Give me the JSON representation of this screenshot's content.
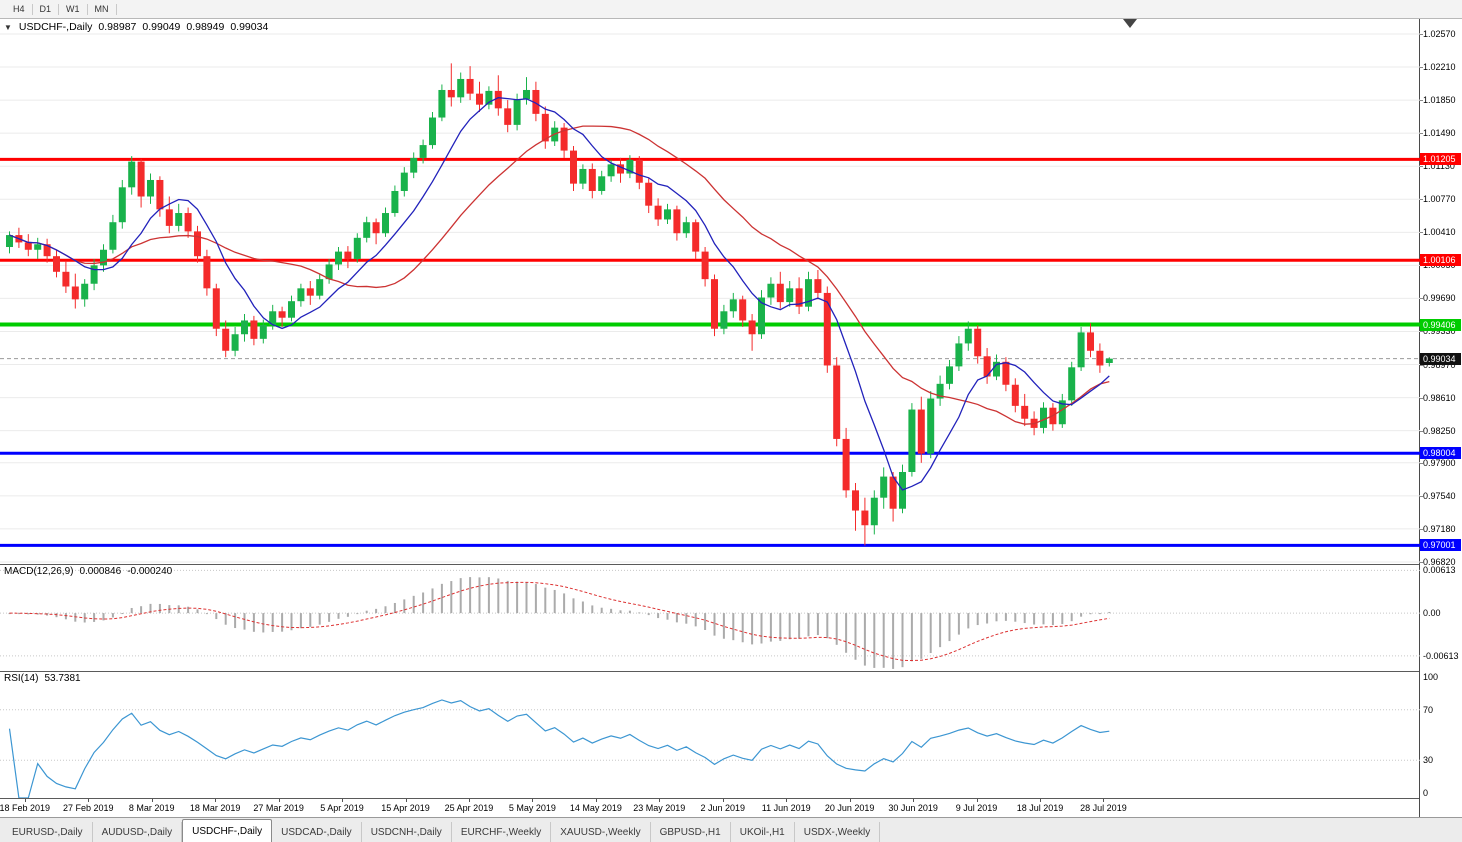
{
  "toolbar": {
    "timeframes": [
      "H4",
      "D1",
      "W1",
      "MN"
    ]
  },
  "chart": {
    "title": {
      "symbol": "USDCHF-,Daily",
      "open": "0.98987",
      "high": "0.99049",
      "low": "0.98949",
      "close": "0.99034"
    }
  },
  "macd": {
    "name": "MACD(12,26,9)",
    "main": "0.000846",
    "signal": "-0.000240"
  },
  "rsi": {
    "name": "RSI(14)",
    "value": "53.7381"
  },
  "tabs": {
    "active_index": 2,
    "items": [
      "EURUSD-,Daily",
      "AUDUSD-,Daily",
      "USDCHF-,Daily",
      "USDCAD-,Daily",
      "USDCNH-,Daily",
      "EURCHF-,Weekly",
      "XAUUSD-,Weekly",
      "GBPUSD-,H1",
      "UKOil-,H1",
      "USDX-,Weekly"
    ]
  },
  "colors": {
    "background": "#ffffff",
    "grid": "#ebebeb",
    "bull": "#19b24b",
    "bear": "#f42b2b",
    "ma_fast": "#2222bb",
    "ma_slow": "#cc3333",
    "current_price_line": "#9a9a9a",
    "current_price_badge": "#111111",
    "macd_bar": "#ababab",
    "macd_signal": "#dd3333",
    "rsi_line": "#3c96d2",
    "indicator_grid": "#c8c8c8",
    "shift_marker": "#444444"
  },
  "chart_data": {
    "type": "candlestick",
    "symbol": "USDCHF",
    "timeframe": "Daily",
    "ylim": [
      0.96798,
      1.02733
    ],
    "price_grid": [
      "1.02570",
      "1.02210",
      "1.01850",
      "1.01490",
      "1.01130",
      "1.00770",
      "1.00410",
      "1.00050",
      "0.99690",
      "0.99330",
      "0.98970",
      "0.98610",
      "0.98250",
      "0.97900",
      "0.97540",
      "0.97180",
      "0.96820"
    ],
    "x_labels": [
      "18 Feb 2019",
      "27 Feb 2019",
      "8 Mar 2019",
      "18 Mar 2019",
      "27 Mar 2019",
      "5 Apr 2019",
      "15 Apr 2019",
      "25 Apr 2019",
      "5 May 2019",
      "14 May 2019",
      "23 May 2019",
      "2 Jun 2019",
      "11 Jun 2019",
      "20 Jun 2019",
      "30 Jun 2019",
      "9 Jul 2019",
      "18 Jul 2019",
      "28 Jul 2019"
    ],
    "levels": [
      {
        "price": 1.01205,
        "label": "1.01205",
        "color": "#ff0000",
        "width": 3
      },
      {
        "price": 1.00106,
        "label": "1.00106",
        "color": "#ff0000",
        "width": 3
      },
      {
        "price": 0.99406,
        "label": "0.99406",
        "color": "#00cc00",
        "width": 4
      },
      {
        "price": 0.98004,
        "label": "0.98004",
        "color": "#0000ff",
        "width": 3
      },
      {
        "price": 0.97001,
        "label": "0.97001",
        "color": "#0000ff",
        "width": 3
      }
    ],
    "current_price": 0.99034,
    "current_price_label": "0.99034",
    "ma": {
      "fast_period": 8,
      "slow_period": 21
    },
    "macd": {
      "params": "(12,26,9)",
      "ylim": [
        -0.0083,
        0.0069
      ],
      "grid": [
        {
          "v": 0.00613,
          "t": "0.00613"
        },
        {
          "v": 0,
          "t": "0.00"
        },
        {
          "v": -0.00613,
          "t": "-0.00613"
        }
      ]
    },
    "rsi": {
      "period": 14,
      "grid": [
        {
          "v": 100,
          "t": "100"
        },
        {
          "v": 70,
          "t": "70"
        },
        {
          "v": 30,
          "t": "30"
        },
        {
          "v": 0,
          "t": "0"
        }
      ],
      "dotted": [
        70,
        30
      ]
    },
    "candles": [
      [
        1.0025,
        1.0042,
        1.0018,
        1.0038
      ],
      [
        1.0038,
        1.0046,
        1.0024,
        1.003
      ],
      [
        1.003,
        1.0039,
        1.0015,
        1.0022
      ],
      [
        1.0022,
        1.0035,
        1.0012,
        1.0028
      ],
      [
        1.0028,
        1.0034,
        1.0008,
        1.0015
      ],
      [
        1.0015,
        1.0022,
        0.9992,
        0.9998
      ],
      [
        0.9998,
        1.001,
        0.9975,
        0.9982
      ],
      [
        0.9982,
        0.9996,
        0.9958,
        0.9968
      ],
      [
        0.9968,
        0.999,
        0.996,
        0.9985
      ],
      [
        0.9985,
        1.0012,
        0.9978,
        1.0005
      ],
      [
        1.0005,
        1.0028,
        0.9998,
        1.0022
      ],
      [
        1.0022,
        1.006,
        1.0018,
        1.0052
      ],
      [
        1.0052,
        1.0098,
        1.0045,
        1.009
      ],
      [
        1.009,
        1.0124,
        1.0082,
        1.0118
      ],
      [
        1.0118,
        1.0121,
        1.0068,
        1.008
      ],
      [
        1.008,
        1.0105,
        1.0072,
        1.0098
      ],
      [
        1.0098,
        1.0102,
        1.0058,
        1.0066
      ],
      [
        1.0066,
        1.008,
        1.004,
        1.0048
      ],
      [
        1.0048,
        1.0072,
        1.0042,
        1.0062
      ],
      [
        1.0062,
        1.0068,
        1.0035,
        1.0042
      ],
      [
        1.0042,
        1.0048,
        1.0008,
        1.0015
      ],
      [
        1.0015,
        1.0022,
        0.9972,
        0.998
      ],
      [
        0.998,
        0.9985,
        0.9928,
        0.9936
      ],
      [
        0.9936,
        0.9945,
        0.9905,
        0.9912
      ],
      [
        0.9912,
        0.9938,
        0.9906,
        0.993
      ],
      [
        0.993,
        0.9952,
        0.9922,
        0.9945
      ],
      [
        0.9945,
        0.995,
        0.9918,
        0.9925
      ],
      [
        0.9925,
        0.9946,
        0.992,
        0.994
      ],
      [
        0.994,
        0.9962,
        0.9935,
        0.9955
      ],
      [
        0.9955,
        0.996,
        0.9938,
        0.9948
      ],
      [
        0.9948,
        0.9972,
        0.9944,
        0.9966
      ],
      [
        0.9966,
        0.9985,
        0.996,
        0.998
      ],
      [
        0.998,
        0.9988,
        0.9962,
        0.9972
      ],
      [
        0.9972,
        0.9995,
        0.9968,
        0.999
      ],
      [
        0.999,
        1.0012,
        0.9985,
        1.0006
      ],
      [
        1.0006,
        1.0025,
        1.0,
        1.002
      ],
      [
        1.002,
        1.0026,
        1.0002,
        1.0012
      ],
      [
        1.0012,
        1.004,
        1.0008,
        1.0035
      ],
      [
        1.0035,
        1.0058,
        1.003,
        1.0052
      ],
      [
        1.0052,
        1.0056,
        1.0028,
        1.004
      ],
      [
        1.004,
        1.0068,
        1.0036,
        1.0062
      ],
      [
        1.0062,
        1.0092,
        1.0058,
        1.0086
      ],
      [
        1.0086,
        1.0112,
        1.008,
        1.0106
      ],
      [
        1.0106,
        1.0128,
        1.01,
        1.0122
      ],
      [
        1.0122,
        1.0142,
        1.0116,
        1.0136
      ],
      [
        1.0136,
        1.0172,
        1.0132,
        1.0166
      ],
      [
        1.0166,
        1.0202,
        1.0162,
        1.0196
      ],
      [
        1.0196,
        1.0225,
        1.0178,
        1.0188
      ],
      [
        1.0188,
        1.0215,
        1.0182,
        1.0208
      ],
      [
        1.0208,
        1.0222,
        1.0185,
        1.0192
      ],
      [
        1.0192,
        1.0205,
        1.0172,
        1.018
      ],
      [
        1.018,
        1.02,
        1.0175,
        1.0195
      ],
      [
        1.0195,
        1.0212,
        1.0168,
        1.0176
      ],
      [
        1.0176,
        1.0185,
        1.015,
        1.0158
      ],
      [
        1.0158,
        1.0192,
        1.0152,
        1.0186
      ],
      [
        1.0186,
        1.021,
        1.018,
        1.0196
      ],
      [
        1.0196,
        1.0205,
        1.0162,
        1.017
      ],
      [
        1.017,
        1.0178,
        1.0132,
        1.014
      ],
      [
        1.014,
        1.0162,
        1.0135,
        1.0155
      ],
      [
        1.0155,
        1.016,
        1.0122,
        1.013
      ],
      [
        1.013,
        1.0135,
        1.0086,
        1.0094
      ],
      [
        1.0094,
        1.0115,
        1.0088,
        1.011
      ],
      [
        1.011,
        1.0116,
        1.0078,
        1.0086
      ],
      [
        1.0086,
        1.0108,
        1.0082,
        1.0102
      ],
      [
        1.0102,
        1.012,
        1.0096,
        1.0115
      ],
      [
        1.0115,
        1.0122,
        1.0095,
        1.0105
      ],
      [
        1.0105,
        1.0125,
        1.01,
        1.012
      ],
      [
        1.012,
        1.0124,
        1.0088,
        1.0095
      ],
      [
        1.0095,
        1.01,
        1.0062,
        1.007
      ],
      [
        1.007,
        1.0078,
        1.0048,
        1.0055
      ],
      [
        1.0055,
        1.0072,
        1.005,
        1.0066
      ],
      [
        1.0066,
        1.007,
        1.0032,
        1.004
      ],
      [
        1.004,
        1.0058,
        1.0035,
        1.0052
      ],
      [
        1.0052,
        1.0055,
        1.0012,
        1.002
      ],
      [
        1.002,
        1.0025,
        0.9982,
        0.999
      ],
      [
        0.999,
        0.9995,
        0.9928,
        0.9936
      ],
      [
        0.9936,
        0.9962,
        0.993,
        0.9955
      ],
      [
        0.9955,
        0.9975,
        0.9948,
        0.9968
      ],
      [
        0.9968,
        0.9972,
        0.9938,
        0.9945
      ],
      [
        0.9945,
        0.9952,
        0.9912,
        0.993
      ],
      [
        0.993,
        0.9978,
        0.9925,
        0.997
      ],
      [
        0.997,
        0.9992,
        0.9962,
        0.9985
      ],
      [
        0.9985,
        0.9998,
        0.9958,
        0.9965
      ],
      [
        0.9965,
        0.9988,
        0.996,
        0.998
      ],
      [
        0.998,
        0.9992,
        0.9952,
        0.996
      ],
      [
        0.996,
        0.9998,
        0.9955,
        0.999
      ],
      [
        0.999,
        1.0,
        0.9968,
        0.9975
      ],
      [
        0.9975,
        0.9982,
        0.9888,
        0.9896
      ],
      [
        0.9896,
        0.9905,
        0.9808,
        0.9816
      ],
      [
        0.9816,
        0.9828,
        0.9752,
        0.976
      ],
      [
        0.976,
        0.9768,
        0.9716,
        0.9738
      ],
      [
        0.9738,
        0.9752,
        0.97,
        0.9722
      ],
      [
        0.9722,
        0.976,
        0.9712,
        0.9752
      ],
      [
        0.9752,
        0.9785,
        0.974,
        0.9775
      ],
      [
        0.9775,
        0.978,
        0.9726,
        0.974
      ],
      [
        0.974,
        0.9788,
        0.9735,
        0.978
      ],
      [
        0.978,
        0.9855,
        0.9775,
        0.9848
      ],
      [
        0.9848,
        0.9862,
        0.979,
        0.98
      ],
      [
        0.98,
        0.9868,
        0.9795,
        0.986
      ],
      [
        0.986,
        0.9885,
        0.9852,
        0.9876
      ],
      [
        0.9876,
        0.9902,
        0.987,
        0.9895
      ],
      [
        0.9895,
        0.9928,
        0.989,
        0.992
      ],
      [
        0.992,
        0.9944,
        0.9912,
        0.9936
      ],
      [
        0.9936,
        0.994,
        0.9898,
        0.9906
      ],
      [
        0.9906,
        0.9915,
        0.9876,
        0.9884
      ],
      [
        0.9884,
        0.9908,
        0.988,
        0.99
      ],
      [
        0.99,
        0.9905,
        0.9868,
        0.9875
      ],
      [
        0.9875,
        0.9882,
        0.9845,
        0.9852
      ],
      [
        0.9852,
        0.9865,
        0.983,
        0.9838
      ],
      [
        0.9838,
        0.9846,
        0.982,
        0.9828
      ],
      [
        0.9828,
        0.9856,
        0.9822,
        0.985
      ],
      [
        0.985,
        0.9855,
        0.9825,
        0.9832
      ],
      [
        0.9832,
        0.9865,
        0.9828,
        0.9858
      ],
      [
        0.9858,
        0.99,
        0.9852,
        0.9894
      ],
      [
        0.9894,
        0.9938,
        0.989,
        0.9932
      ],
      [
        0.9932,
        0.9942,
        0.9905,
        0.9912
      ],
      [
        0.9912,
        0.992,
        0.9888,
        0.9896
      ],
      [
        0.98987,
        0.99049,
        0.98949,
        0.99034
      ]
    ]
  }
}
